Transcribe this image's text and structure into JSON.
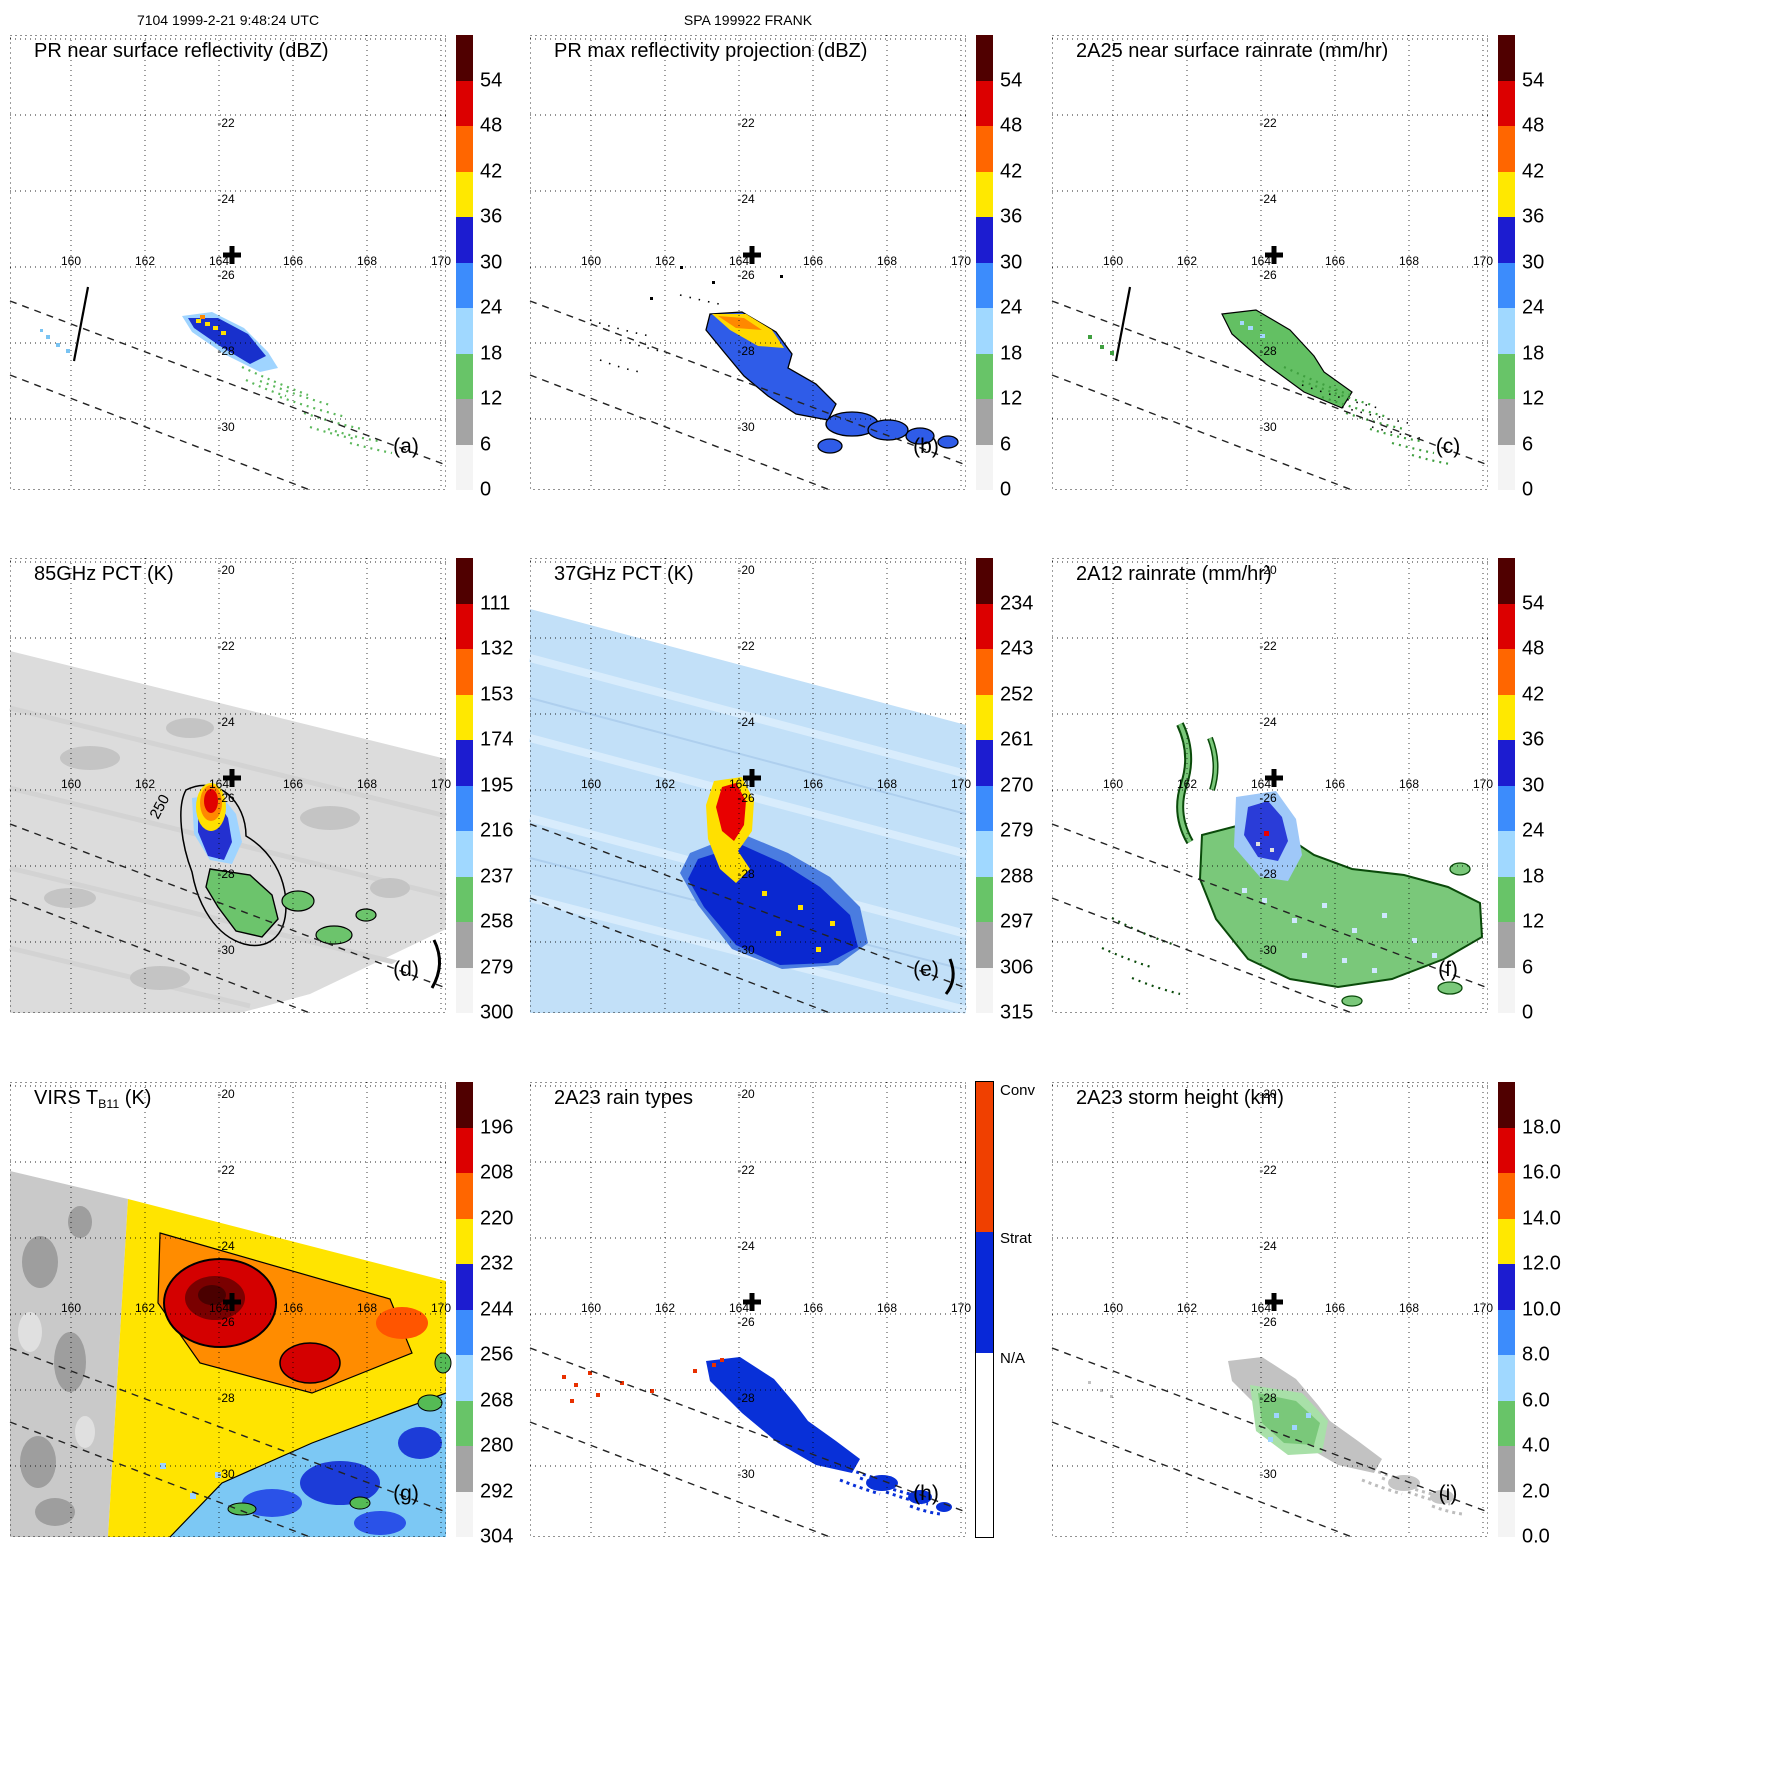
{
  "header": {
    "left": "7104 1999-2-21 9:48:24 UTC",
    "center": "SPA 199922 FRANK"
  },
  "axes": {
    "lon_ticks": [
      "160",
      "162",
      "164",
      "166",
      "168",
      "170"
    ],
    "lat_ticks": [
      "-20",
      "-22",
      "-24",
      "-26",
      "-28",
      "-30"
    ]
  },
  "palettes": {
    "main": [
      "#500000",
      "#dc0000",
      "#ff6600",
      "#ffe800",
      "#1c1cd0",
      "#3c8cfc",
      "#a0d8ff",
      "#68c468",
      "#a4a4a4",
      "#f4f4f4"
    ],
    "raintype": [
      {
        "color": "#f04000",
        "frac": 0.33,
        "label": "Conv",
        "label_at": 0.0
      },
      {
        "color": "#0828d8",
        "frac": 0.265,
        "label": "Strat",
        "label_at": 0.325
      },
      {
        "color": "#ffffff",
        "frac": 0.405,
        "label": "N/A",
        "label_at": 0.59
      }
    ]
  },
  "panels": [
    {
      "letter": "(a)",
      "title_pre": "PR near surface reflectivity (dBZ)",
      "title_sub": "",
      "title_post": "",
      "colorbar": {
        "type": "scale",
        "palette": "main",
        "ticks": [
          "54",
          "48",
          "42",
          "36",
          "30",
          "24",
          "18",
          "12",
          "6",
          "0"
        ]
      }
    },
    {
      "letter": "(b)",
      "title_pre": "PR max reflectivity projection (dBZ)",
      "title_sub": "",
      "title_post": "",
      "colorbar": {
        "type": "scale",
        "palette": "main",
        "ticks": [
          "54",
          "48",
          "42",
          "36",
          "30",
          "24",
          "18",
          "12",
          "6",
          "0"
        ]
      }
    },
    {
      "letter": "(c)",
      "title_pre": "2A25 near surface rainrate (mm/hr)",
      "title_sub": "",
      "title_post": "",
      "colorbar": {
        "type": "scale",
        "palette": "main",
        "ticks": [
          "54",
          "48",
          "42",
          "36",
          "30",
          "24",
          "18",
          "12",
          "6",
          "0"
        ]
      }
    },
    {
      "letter": "(d)",
      "title_pre": "85GHz PCT (K)",
      "title_sub": "",
      "title_post": "",
      "annotation": "250",
      "colorbar": {
        "type": "scale",
        "palette": "main",
        "ticks": [
          "111",
          "132",
          "153",
          "174",
          "195",
          "216",
          "237",
          "258",
          "279",
          "300"
        ]
      }
    },
    {
      "letter": "(e)",
      "title_pre": "37GHz PCT (K)",
      "title_sub": "",
      "title_post": "",
      "colorbar": {
        "type": "scale",
        "palette": "main",
        "ticks": [
          "234",
          "243",
          "252",
          "261",
          "270",
          "279",
          "288",
          "297",
          "306",
          "315"
        ]
      }
    },
    {
      "letter": "(f)",
      "title_pre": "2A12 rainrate (mm/hr)",
      "title_sub": "",
      "title_post": "",
      "colorbar": {
        "type": "scale",
        "palette": "main",
        "ticks": [
          "54",
          "48",
          "42",
          "36",
          "30",
          "24",
          "18",
          "12",
          "6",
          "0"
        ]
      }
    },
    {
      "letter": "(g)",
      "title_pre": "VIRS T",
      "title_sub": "B11",
      "title_post": " (K)",
      "colorbar": {
        "type": "scale",
        "palette": "main",
        "ticks": [
          "196",
          "208",
          "220",
          "232",
          "244",
          "256",
          "268",
          "280",
          "292",
          "304"
        ]
      }
    },
    {
      "letter": "(h)",
      "title_pre": "2A23 rain types",
      "title_sub": "",
      "title_post": "",
      "colorbar": {
        "type": "categorical",
        "palette": "raintype"
      }
    },
    {
      "letter": "(i)",
      "title_pre": "2A23 storm height (km)",
      "title_sub": "",
      "title_post": "",
      "colorbar": {
        "type": "scale",
        "palette": "main",
        "ticks": [
          "18.0",
          "16.0",
          "14.0",
          "12.0",
          "10.0",
          "8.0",
          "6.0",
          "4.0",
          "2.0",
          "0.0"
        ]
      }
    }
  ],
  "chart_data": [
    {
      "panel": "a",
      "type": "heatmap",
      "title": "PR near surface reflectivity (dBZ)",
      "units": "dBZ",
      "scale_ticks": [
        54,
        48,
        42,
        36,
        30,
        24,
        18,
        12,
        6,
        0
      ],
      "lon_range": [
        158.4,
        170.4
      ],
      "lat_range": [
        -31.9,
        -19.9
      ],
      "storm_center_lon": 164.3,
      "storm_center_lat": -25.8
    },
    {
      "panel": "b",
      "type": "heatmap",
      "title": "PR max reflectivity projection (dBZ)",
      "units": "dBZ",
      "scale_ticks": [
        54,
        48,
        42,
        36,
        30,
        24,
        18,
        12,
        6,
        0
      ],
      "lon_range": [
        158.4,
        170.4
      ],
      "lat_range": [
        -31.9,
        -19.9
      ]
    },
    {
      "panel": "c",
      "type": "heatmap",
      "title": "2A25 near surface rainrate (mm/hr)",
      "units": "mm/hr",
      "scale_ticks": [
        54,
        48,
        42,
        36,
        30,
        24,
        18,
        12,
        6,
        0
      ],
      "lon_range": [
        158.4,
        170.4
      ],
      "lat_range": [
        -31.9,
        -19.9
      ]
    },
    {
      "panel": "d",
      "type": "heatmap",
      "title": "85GHz PCT (K)",
      "units": "K",
      "scale_ticks": [
        111,
        132,
        153,
        174,
        195,
        216,
        237,
        258,
        279,
        300
      ],
      "contour_label": 250,
      "lon_range": [
        158.4,
        170.4
      ],
      "lat_range": [
        -31.9,
        -19.9
      ]
    },
    {
      "panel": "e",
      "type": "heatmap",
      "title": "37GHz PCT (K)",
      "units": "K",
      "scale_ticks": [
        234,
        243,
        252,
        261,
        270,
        279,
        288,
        297,
        306,
        315
      ],
      "lon_range": [
        158.4,
        170.4
      ],
      "lat_range": [
        -31.9,
        -19.9
      ]
    },
    {
      "panel": "f",
      "type": "heatmap",
      "title": "2A12 rainrate (mm/hr)",
      "units": "mm/hr",
      "scale_ticks": [
        54,
        48,
        42,
        36,
        30,
        24,
        18,
        12,
        6,
        0
      ],
      "lon_range": [
        158.4,
        170.4
      ],
      "lat_range": [
        -31.9,
        -19.9
      ]
    },
    {
      "panel": "g",
      "type": "heatmap",
      "title": "VIRS T_B11 (K)",
      "units": "K",
      "scale_ticks": [
        196,
        208,
        220,
        232,
        244,
        256,
        268,
        280,
        292,
        304
      ],
      "lon_range": [
        158.4,
        170.4
      ],
      "lat_range": [
        -31.9,
        -19.9
      ]
    },
    {
      "panel": "h",
      "type": "categorical-map",
      "title": "2A23 rain types",
      "categories": [
        "Conv",
        "Strat",
        "N/A"
      ],
      "lon_range": [
        158.4,
        170.4
      ],
      "lat_range": [
        -31.9,
        -19.9
      ]
    },
    {
      "panel": "i",
      "type": "heatmap",
      "title": "2A23 storm height (km)",
      "units": "km",
      "scale_ticks": [
        18,
        16,
        14,
        12,
        10,
        8,
        6,
        4,
        2,
        0
      ],
      "lon_range": [
        158.4,
        170.4
      ],
      "lat_range": [
        -31.9,
        -19.9
      ]
    }
  ]
}
